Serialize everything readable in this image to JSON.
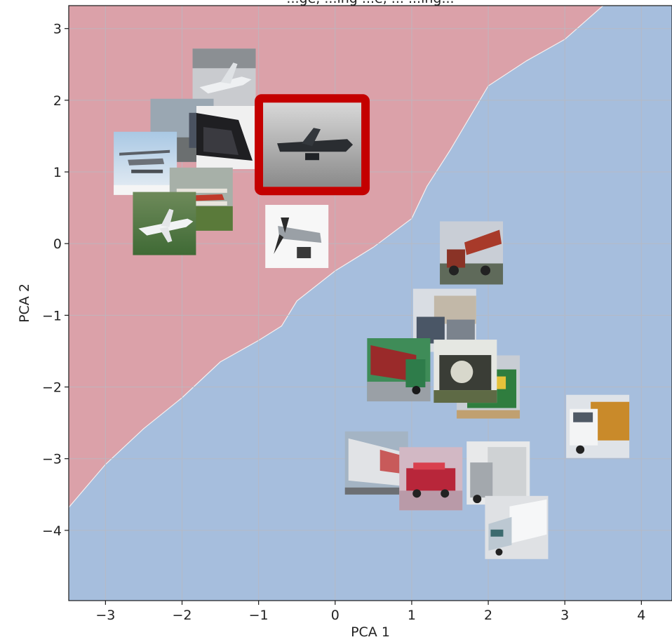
{
  "chart_data": {
    "type": "scatter",
    "title": "...ge, ...ing ...e, ... ...ing...",
    "xlabel": "PCA 1",
    "ylabel": "PCA 2",
    "xlim": [
      -3.48,
      4.4
    ],
    "ylim": [
      -4.98,
      3.32
    ],
    "xticks": [
      "−3",
      "−2",
      "−1",
      "0",
      "1",
      "2",
      "3",
      "4"
    ],
    "xtick_values": [
      -3,
      -2,
      -1,
      0,
      1,
      2,
      3,
      4
    ],
    "yticks": [
      "3",
      "2",
      "1",
      "0",
      "−1",
      "−2",
      "−3",
      "−4"
    ],
    "ytick_values": [
      3,
      2,
      1,
      0,
      -1,
      -2,
      -3,
      -4
    ],
    "grid": true,
    "regions": [
      {
        "name": "airplane",
        "color": "#dba1a9",
        "side": "upper-left"
      },
      {
        "name": "truck",
        "color": "#a6bedd",
        "side": "lower-right"
      }
    ],
    "decision_boundary": [
      [
        -3.48,
        -3.68
      ],
      [
        -3.0,
        -3.08
      ],
      [
        -2.5,
        -2.58
      ],
      [
        -2.0,
        -2.15
      ],
      [
        -1.5,
        -1.65
      ],
      [
        -1.0,
        -1.35
      ],
      [
        -0.7,
        -1.15
      ],
      [
        -0.5,
        -0.8
      ],
      [
        0.0,
        -0.38
      ],
      [
        0.5,
        -0.05
      ],
      [
        1.0,
        0.35
      ],
      [
        1.2,
        0.8
      ],
      [
        1.5,
        1.3
      ],
      [
        2.0,
        2.2
      ],
      [
        2.5,
        2.55
      ],
      [
        3.0,
        2.85
      ],
      [
        3.5,
        3.32
      ]
    ],
    "images": [
      {
        "label": "airplane",
        "x": -1.45,
        "y": 2.28,
        "scene": "jet-grey"
      },
      {
        "label": "airplane",
        "x": -2.0,
        "y": 1.58,
        "scene": "sky-grey"
      },
      {
        "label": "airplane",
        "x": -1.4,
        "y": 1.48,
        "scene": "dark-wing"
      },
      {
        "label": "airplane",
        "x": -2.48,
        "y": 1.12,
        "scene": "seaplane"
      },
      {
        "label": "airplane",
        "x": -1.75,
        "y": 0.62,
        "scene": "biplane"
      },
      {
        "label": "airplane",
        "x": -2.23,
        "y": 0.28,
        "scene": "jet-grass"
      },
      {
        "label": "airplane",
        "x": -0.5,
        "y": 0.1,
        "scene": "propeller"
      },
      {
        "label": "airplane",
        "x": -0.3,
        "y": 1.38,
        "scene": "warbird",
        "highlight": true,
        "highlight_color": "#c40000"
      },
      {
        "label": "truck",
        "x": 1.78,
        "y": -0.13,
        "scene": "dump-truck"
      },
      {
        "label": "truck",
        "x": 1.43,
        "y": -1.07,
        "scene": "trucks-building"
      },
      {
        "label": "truck",
        "x": 0.83,
        "y": -1.76,
        "scene": "green-semi"
      },
      {
        "label": "truck",
        "x": 2.0,
        "y": -2.0,
        "scene": "green-truck"
      },
      {
        "label": "truck",
        "x": 1.7,
        "y": -1.78,
        "scene": "old-truck"
      },
      {
        "label": "truck",
        "x": 3.43,
        "y": -2.55,
        "scene": "white-semi"
      },
      {
        "label": "truck",
        "x": 0.54,
        "y": -3.06,
        "scene": "trailer"
      },
      {
        "label": "truck",
        "x": 2.13,
        "y": -3.2,
        "scene": "white-box-truck"
      },
      {
        "label": "truck",
        "x": 1.25,
        "y": -3.28,
        "scene": "red-fire-truck"
      },
      {
        "label": "truck",
        "x": 2.37,
        "y": -3.96,
        "scene": "box-truck-light"
      }
    ]
  }
}
